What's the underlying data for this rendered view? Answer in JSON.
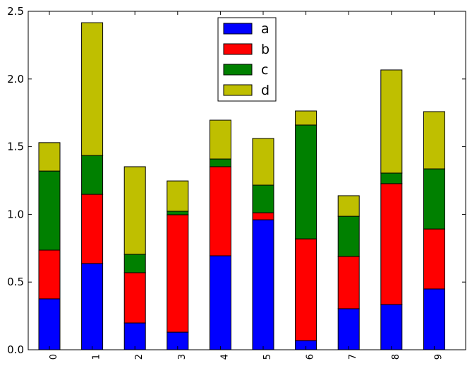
{
  "chart_data": {
    "type": "bar",
    "stacked": true,
    "title": "",
    "xlabel": "",
    "ylabel": "",
    "categories": [
      "0",
      "1",
      "2",
      "3",
      "4",
      "5",
      "6",
      "7",
      "8",
      "9"
    ],
    "ylim": [
      0,
      2.5
    ],
    "yticks": [
      "0.0",
      "0.5",
      "1.0",
      "1.5",
      "2.0",
      "2.5"
    ],
    "legend_position": "top-center",
    "series": [
      {
        "name": "a",
        "color": "#0000ff",
        "values": [
          0.376,
          0.637,
          0.198,
          0.13,
          0.694,
          0.96,
          0.068,
          0.303,
          0.334,
          0.449
        ]
      },
      {
        "name": "b",
        "color": "#ff0000",
        "values": [
          0.36,
          0.511,
          0.371,
          0.867,
          0.658,
          0.052,
          0.751,
          0.386,
          0.893,
          0.443
        ]
      },
      {
        "name": "c",
        "color": "#008000",
        "values": [
          0.584,
          0.287,
          0.136,
          0.026,
          0.057,
          0.204,
          0.841,
          0.297,
          0.078,
          0.444
        ]
      },
      {
        "name": "d",
        "color": "#bfbf00",
        "values": [
          0.21,
          0.981,
          0.647,
          0.224,
          0.287,
          0.345,
          0.104,
          0.152,
          0.762,
          0.423
        ]
      }
    ]
  }
}
